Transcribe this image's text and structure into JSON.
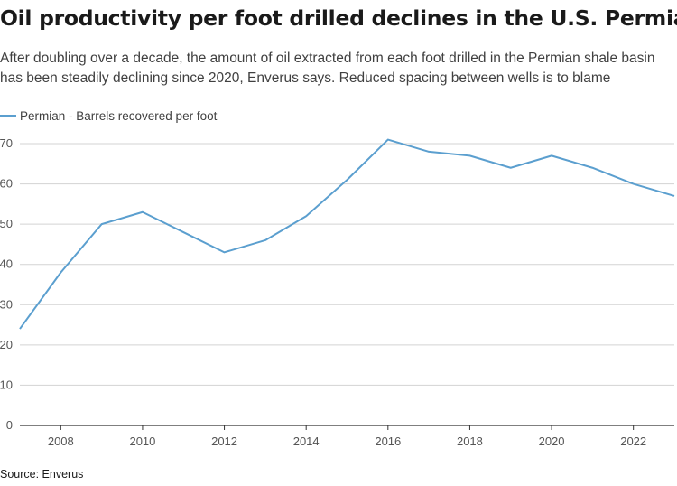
{
  "title": "Oil productivity per foot drilled declines in the U.S. Permian",
  "subtitle": "After doubling over a decade, the amount of oil extracted from each foot drilled in the Permian shale basin has been steadily declining since 2020, Enverus says. Reduced spacing between wells is to blame",
  "source": "Source: Enverus",
  "chart_data": {
    "type": "line",
    "title": "Oil productivity per foot drilled declines in the U.S. Permian",
    "xlabel": "",
    "ylabel": "",
    "x": [
      2007,
      2008,
      2009,
      2010,
      2011,
      2012,
      2013,
      2014,
      2015,
      2016,
      2017,
      2018,
      2019,
      2020,
      2021,
      2022,
      2023
    ],
    "series": [
      {
        "name": "Permian - Barrels recovered per foot",
        "values": [
          24,
          38,
          50,
          53,
          48,
          43,
          46,
          52,
          61,
          71,
          68,
          67,
          64,
          67,
          64,
          60,
          57
        ],
        "color": "#5b9fcf"
      }
    ],
    "xticks": [
      "2008",
      "2010",
      "2012",
      "2014",
      "2016",
      "2018",
      "2020",
      "2022"
    ],
    "yticks": [
      "0",
      "10",
      "20",
      "30",
      "40",
      "50",
      "60",
      "70"
    ],
    "xlim": [
      2007,
      2023
    ],
    "ylim": [
      0,
      70
    ],
    "grid": true,
    "legend": "top-left"
  }
}
